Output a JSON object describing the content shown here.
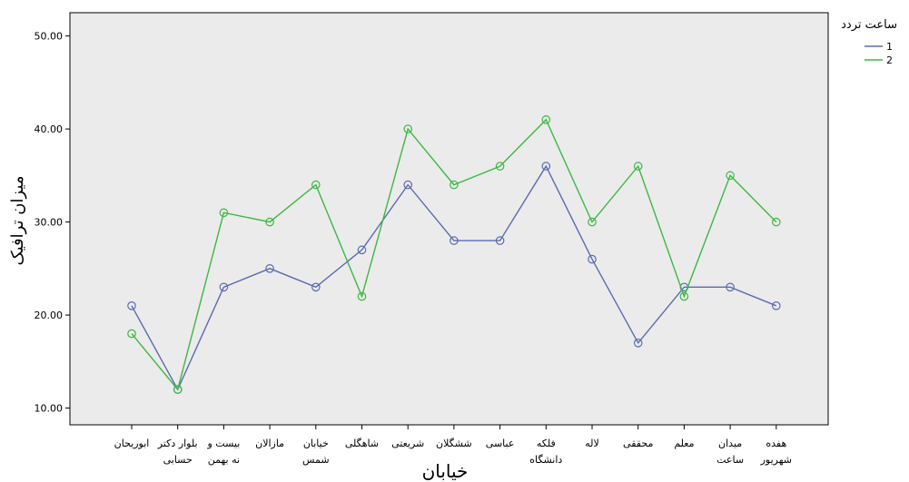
{
  "chart_data": {
    "type": "line",
    "categories": [
      [
        "ابوریحان"
      ],
      [
        "بلوار دکتر",
        "حسابی"
      ],
      [
        "بیست و",
        "نه بهمن"
      ],
      [
        "مازالان"
      ],
      [
        "خیابان",
        "شمس"
      ],
      [
        "شاهگلی"
      ],
      [
        "شریعتی"
      ],
      [
        "ششگلان"
      ],
      [
        "عباسی"
      ],
      [
        "فلکه",
        "دانشگاه"
      ],
      [
        "لاله"
      ],
      [
        "محققی"
      ],
      [
        "معلم"
      ],
      [
        "میدان",
        "ساعت"
      ],
      [
        "هفده",
        "شهریور"
      ]
    ],
    "series": [
      {
        "name": "1",
        "color": "#5b6bb0",
        "values": [
          21,
          12,
          23,
          25,
          23,
          27,
          34,
          28,
          28,
          36,
          26,
          17,
          23,
          23,
          21
        ]
      },
      {
        "name": "2",
        "color": "#3cb843",
        "values": [
          18,
          12,
          31,
          30,
          34,
          22,
          40,
          34,
          36,
          41,
          30,
          36,
          22,
          35,
          30
        ]
      }
    ],
    "xlabel": "خیابان",
    "ylabel": "میزان ترافیک",
    "yticks": [
      "10.00",
      "20.00",
      "30.00",
      "40.00",
      "50.00"
    ],
    "ytick_values": [
      10,
      20,
      30,
      40,
      50
    ],
    "ylim": [
      8.2,
      52.5
    ],
    "legend": {
      "title": "ساعت تردد",
      "position": "top-right-outside"
    },
    "grid": false,
    "plot_background": "#ebebeb"
  }
}
